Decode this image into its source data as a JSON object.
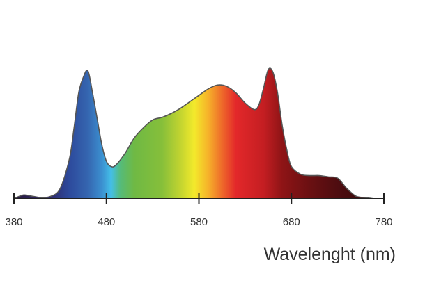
{
  "chart_data": {
    "type": "area",
    "title": "",
    "xlabel": "Wavelenght (nm)",
    "ylabel": "",
    "xlim": [
      380,
      780
    ],
    "ylim": [
      0,
      1
    ],
    "grid": false,
    "legend": "none",
    "xticks": [
      380,
      480,
      580,
      680,
      780
    ],
    "xtick_labels": [
      "380",
      "480",
      "580",
      "680",
      "780"
    ],
    "series": [
      {
        "x": [
          380,
          390,
          400,
          410,
          420,
          430,
          440,
          445,
          450,
          455,
          460,
          465,
          470,
          475,
          480,
          485,
          490,
          500,
          510,
          520,
          530,
          540,
          550,
          560,
          570,
          580,
          590,
          600,
          610,
          620,
          630,
          640,
          645,
          650,
          655,
          660,
          665,
          670,
          675,
          680,
          690,
          700,
          710,
          720,
          730,
          740,
          750,
          760,
          770,
          780
        ],
        "values": [
          0.0,
          0.03,
          0.02,
          0.01,
          0.02,
          0.08,
          0.31,
          0.55,
          0.82,
          0.94,
          0.99,
          0.82,
          0.62,
          0.42,
          0.29,
          0.25,
          0.26,
          0.35,
          0.47,
          0.55,
          0.61,
          0.63,
          0.66,
          0.7,
          0.75,
          0.8,
          0.85,
          0.88,
          0.87,
          0.82,
          0.74,
          0.69,
          0.73,
          0.86,
          1.0,
          0.98,
          0.82,
          0.57,
          0.38,
          0.25,
          0.19,
          0.18,
          0.18,
          0.17,
          0.16,
          0.08,
          0.02,
          0.01,
          0.0,
          0.0
        ]
      }
    ],
    "colors": {
      "outline": "#555555",
      "axis": "#222222",
      "spectrum": {
        "380": "#2a1a40",
        "420": "#2e2b6e",
        "440": "#2d4a9c",
        "460": "#3566b0",
        "475": "#3b8fd0",
        "485": "#44bfe8",
        "495": "#55bb7a",
        "510": "#6fb944",
        "540": "#86bf3a",
        "560": "#c2d430",
        "575": "#f3ea2b",
        "590": "#f6b22a",
        "605": "#ee6a2a",
        "620": "#e3282a",
        "650": "#c41e22",
        "670": "#8e1416",
        "700": "#6a1012",
        "730": "#4e0d10",
        "780": "#2b0808"
      }
    }
  }
}
